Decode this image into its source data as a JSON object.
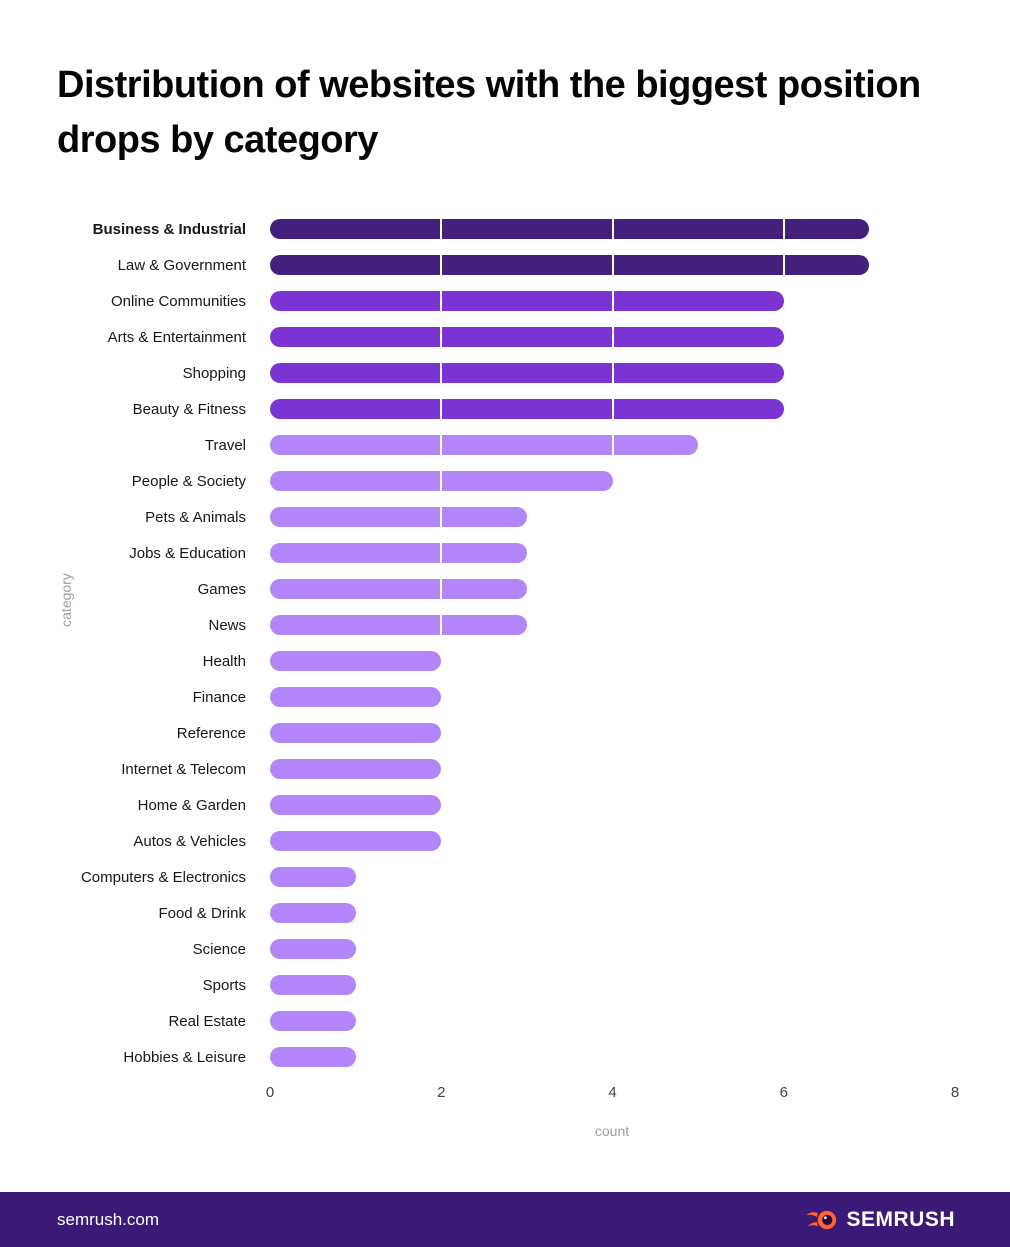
{
  "title": "Distribution of websites with the biggest position drops by category",
  "chart_data": {
    "type": "bar",
    "orientation": "horizontal",
    "categories": [
      "Business & Industrial",
      "Law & Government",
      "Online Communities",
      "Arts & Entertainment",
      "Shopping",
      "Beauty & Fitness",
      "Travel",
      "People & Society",
      "Pets & Animals",
      "Jobs & Education",
      "Games",
      "News",
      "Health",
      "Finance",
      "Reference",
      "Internet & Telecom",
      "Home & Garden",
      "Autos & Vehicles",
      "Computers & Electronics",
      "Food & Drink",
      "Science",
      "Sports",
      "Real Estate",
      "Hobbies & Leisure"
    ],
    "values": [
      7,
      7,
      6,
      6,
      6,
      6,
      5,
      4,
      3,
      3,
      3,
      3,
      2,
      2,
      2,
      2,
      2,
      2,
      1,
      1,
      1,
      1,
      1,
      1
    ],
    "bar_colors": [
      "#42207c",
      "#42207c",
      "#7b33d1",
      "#7b33d1",
      "#7b33d1",
      "#7b33d1",
      "#b286f8",
      "#b286f8",
      "#b286f8",
      "#b286f8",
      "#b286f8",
      "#b286f8",
      "#b286f8",
      "#b286f8",
      "#b286f8",
      "#b286f8",
      "#b286f8",
      "#b286f8",
      "#b286f8",
      "#b286f8",
      "#b286f8",
      "#b286f8",
      "#b286f8",
      "#b286f8"
    ],
    "first_label_bold": true,
    "xlabel": "count",
    "ylabel": "category",
    "xlim": [
      0,
      8
    ],
    "xticks": [
      0,
      2,
      4,
      6,
      8
    ],
    "gridlines": {
      "color": "#ffffff",
      "at": [
        2,
        4,
        6
      ],
      "visible_only_over_bars": true
    },
    "legend": "none"
  },
  "footer": {
    "site": "semrush.com",
    "brand": "SEMRUSH",
    "logo_icon": "semrush-flame-icon",
    "background": "#3a1a76",
    "accent_orange": "#ff642d"
  }
}
